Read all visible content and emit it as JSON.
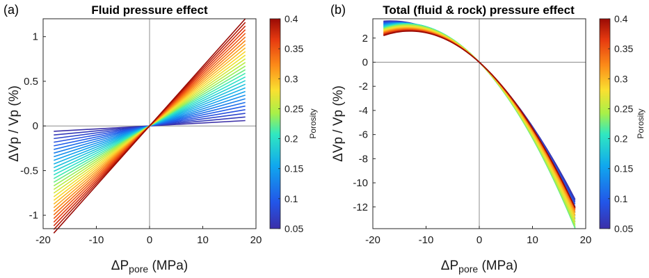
{
  "chart_data": [
    {
      "type": "line",
      "panel_label": "(a)",
      "title": "Fluid pressure effect",
      "xlabel": "ΔP",
      "xlabel_subscript": "pore",
      "xlabel_unit": " (MPa)",
      "ylabel": "ΔVp / Vp (%)",
      "xlim": [
        -20,
        20
      ],
      "ylim": [
        -1.15,
        1.2
      ],
      "xticks": [
        -20,
        -10,
        0,
        10,
        20
      ],
      "yticks": [
        -1,
        -0.5,
        0,
        0.5,
        1
      ],
      "zero_lines": true,
      "x_range": [
        -18,
        18
      ],
      "series_family": {
        "model": "linear through origin",
        "porosity_start": 0.05,
        "porosity_end": 0.4,
        "porosity_step": 0.0125,
        "right_end": {
          "porosity_0.05": 0.06,
          "porosity_0.40": 1.2
        },
        "left_end": {
          "porosity_0.05": -0.06,
          "porosity_0.40": -1.2
        }
      },
      "colorbar": {
        "label": "Porosity",
        "range": [
          0.05,
          0.4
        ],
        "ticks": [
          "0.05",
          "0.1",
          "0.15",
          "0.2",
          "0.25",
          "0.3",
          "0.35",
          "0.4"
        ],
        "colormap": "jet"
      }
    },
    {
      "type": "line",
      "panel_label": "(b)",
      "title": "Total (fluid & rock) pressure effect",
      "xlabel": "ΔP",
      "xlabel_subscript": "pore",
      "xlabel_unit": " (MPa)",
      "ylabel": "ΔVp / Vp (%)",
      "xlim": [
        -20,
        20
      ],
      "ylim": [
        -13.8,
        3.6
      ],
      "xticks": [
        -20,
        -10,
        0,
        10,
        20
      ],
      "yticks": [
        -12,
        -10,
        -8,
        -6,
        -4,
        -2,
        0,
        2
      ],
      "zero_lines": true,
      "x_range": [
        -18,
        18
      ],
      "series_family": {
        "model": "quadratic through origin",
        "porosity_start": 0.05,
        "porosity_end": 0.4,
        "porosity_step": 0.0125,
        "left_end": {
          "porosity_0.05": 3.4,
          "porosity_0.40": 2.2
        },
        "right_end": {
          "porosity_0.05": -11.2,
          "porosity_0.40": -12.0
        },
        "right_end_max_magnitude": -13.4
      },
      "colorbar": {
        "label": "Porosity",
        "range": [
          0.05,
          0.4
        ],
        "ticks": [
          "0.05",
          "0.1",
          "0.15",
          "0.2",
          "0.25",
          "0.3",
          "0.35",
          "0.4"
        ],
        "colormap": "jet"
      }
    }
  ]
}
